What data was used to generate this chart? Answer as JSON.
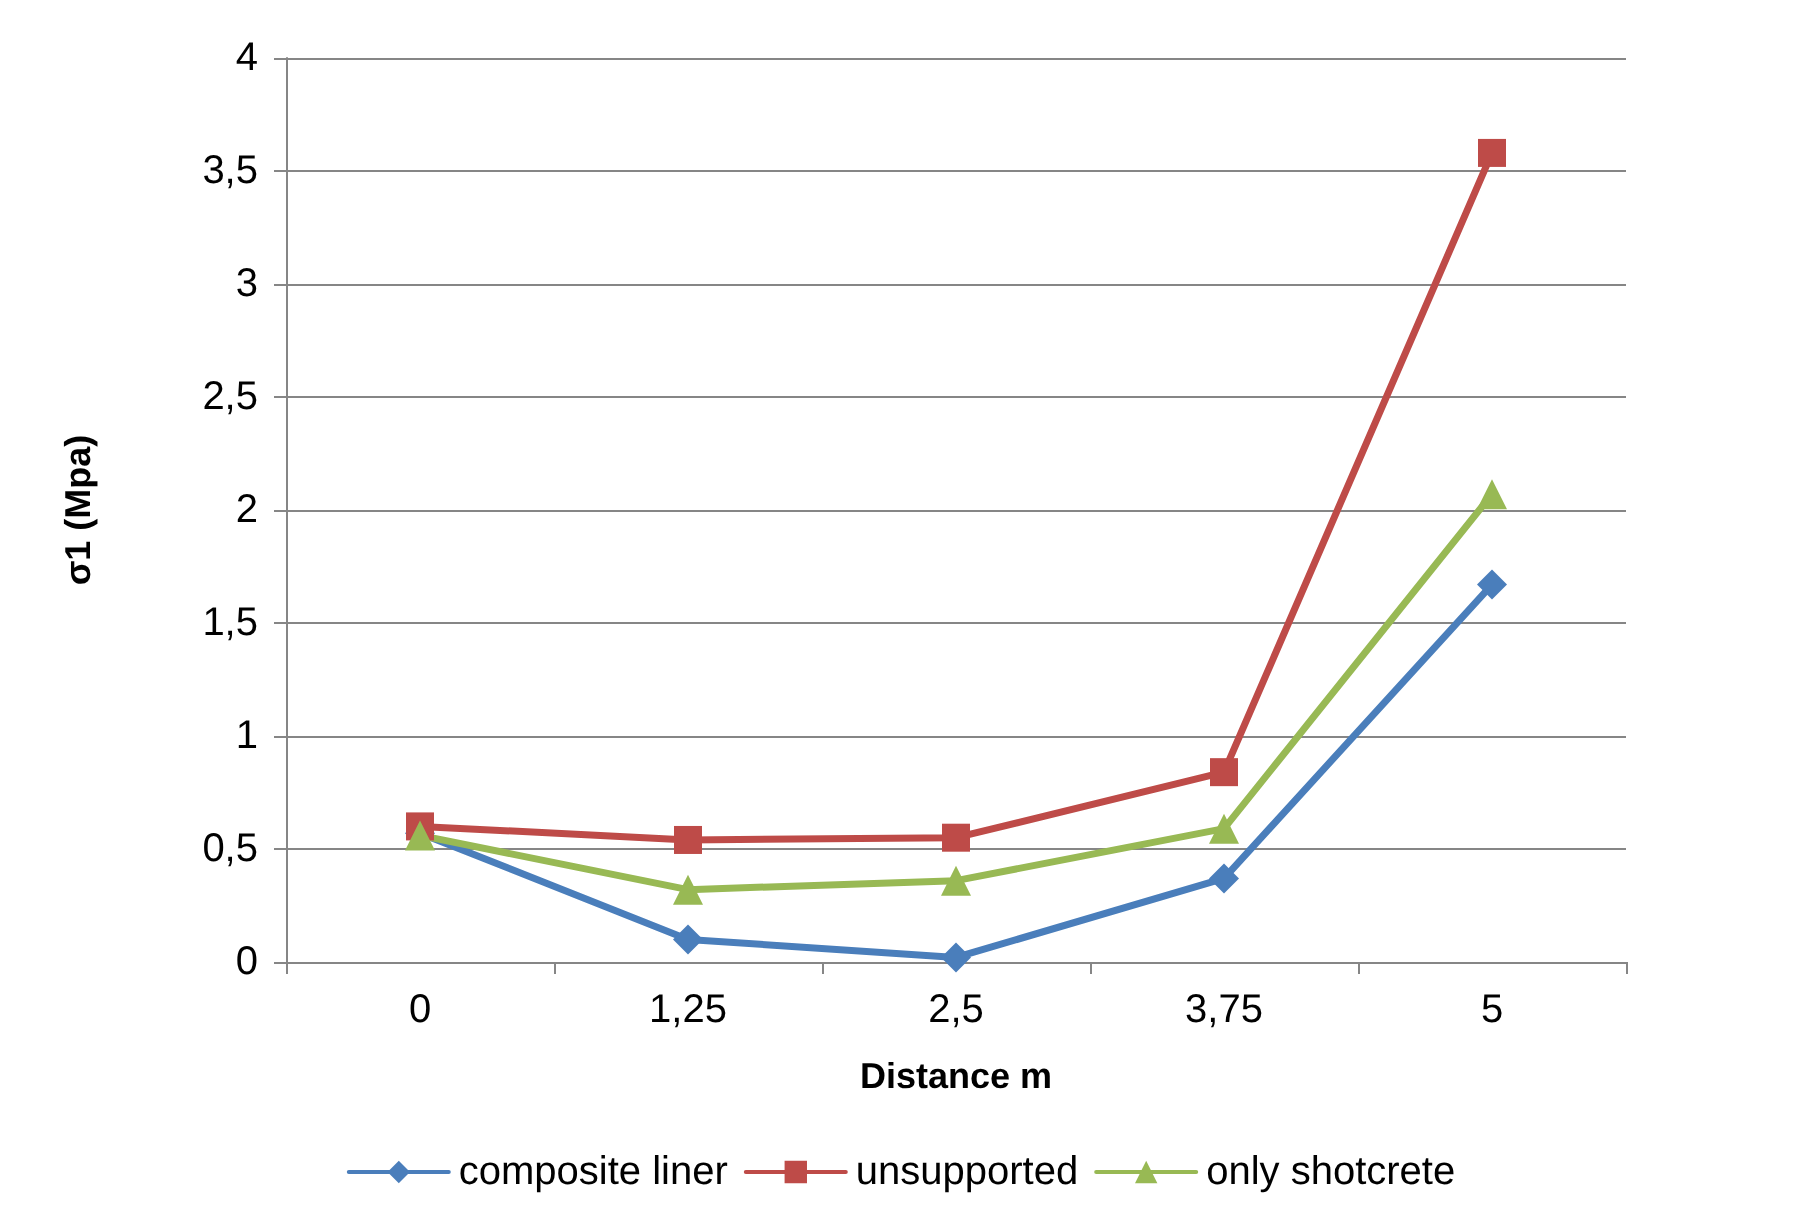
{
  "chart_data": {
    "type": "line",
    "xlabel": "Distance m",
    "ylabel": "σ1 (Mpa)",
    "categories": [
      "0",
      "1,25",
      "2,5",
      "3,75",
      "5"
    ],
    "series": [
      {
        "name": "composite liner",
        "color": "#4a7ebb",
        "marker": "diamond",
        "values": [
          0.57,
          0.1,
          0.02,
          0.37,
          1.67
        ]
      },
      {
        "name": "unsupported",
        "color": "#be4b48",
        "marker": "square",
        "values": [
          0.6,
          0.54,
          0.55,
          0.84,
          3.58
        ]
      },
      {
        "name": "only shotcrete",
        "color": "#98b954",
        "marker": "triangle",
        "values": [
          0.56,
          0.32,
          0.36,
          0.59,
          2.07
        ]
      }
    ],
    "ylim": [
      0,
      4
    ],
    "yticks": [
      0,
      {
        "value": 0.5,
        "label": "0,5"
      },
      1,
      {
        "value": 1.5,
        "label": "1,5"
      },
      2,
      {
        "value": 2.5,
        "label": "2,5"
      },
      3,
      {
        "value": 3.5,
        "label": "3,5"
      },
      4
    ],
    "grid": "y",
    "legend": "bottom",
    "line_style": "solid"
  }
}
